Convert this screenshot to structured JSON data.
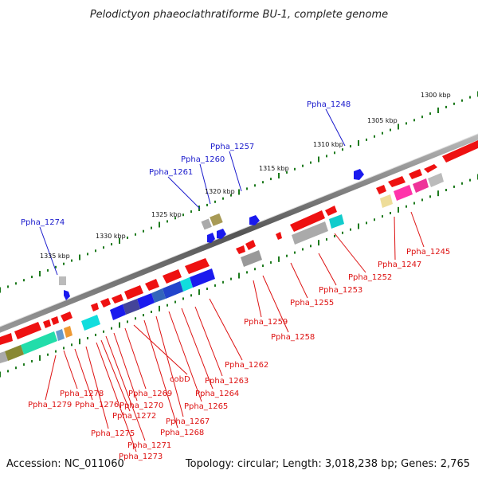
{
  "title": "Pelodictyon phaeoclathratiforme BU-1, complete genome",
  "accession": "Accession: NC_011060",
  "topology": "Topology: circular; Length: 3,018,238 bp; Genes: 2,765",
  "colors": {
    "forward_label": "#1a1acc",
    "reverse_label": "#dd1111",
    "backbone": "#777777",
    "tick": "#1d7a1d"
  },
  "kbp_labels": [
    "1300 kbp",
    "1305 kbp",
    "1310 kbp",
    "1315 kbp",
    "1320 kbp",
    "1325 kbp",
    "1330 kbp",
    "1335 kbp"
  ],
  "forward_labels": [
    "Ppha_1248",
    "Ppha_1257",
    "Ppha_1260",
    "Ppha_1261",
    "Ppha_1274"
  ],
  "reverse_labels": [
    "Ppha_1245",
    "Ppha_1247",
    "Ppha_1252",
    "Ppha_1253",
    "Ppha_1255",
    "Ppha_1258",
    "Ppha_1259",
    "Ppha_1262",
    "Ppha_1263",
    "Ppha_1264",
    "Ppha_1265",
    "Ppha_1267",
    "Ppha_1268",
    "cobD",
    "Ppha_1269",
    "Ppha_1270",
    "Ppha_1271",
    "Ppha_1272",
    "Ppha_1273",
    "Ppha_1275",
    "Ppha_1276",
    "Ppha_1278",
    "Ppha_1279"
  ]
}
